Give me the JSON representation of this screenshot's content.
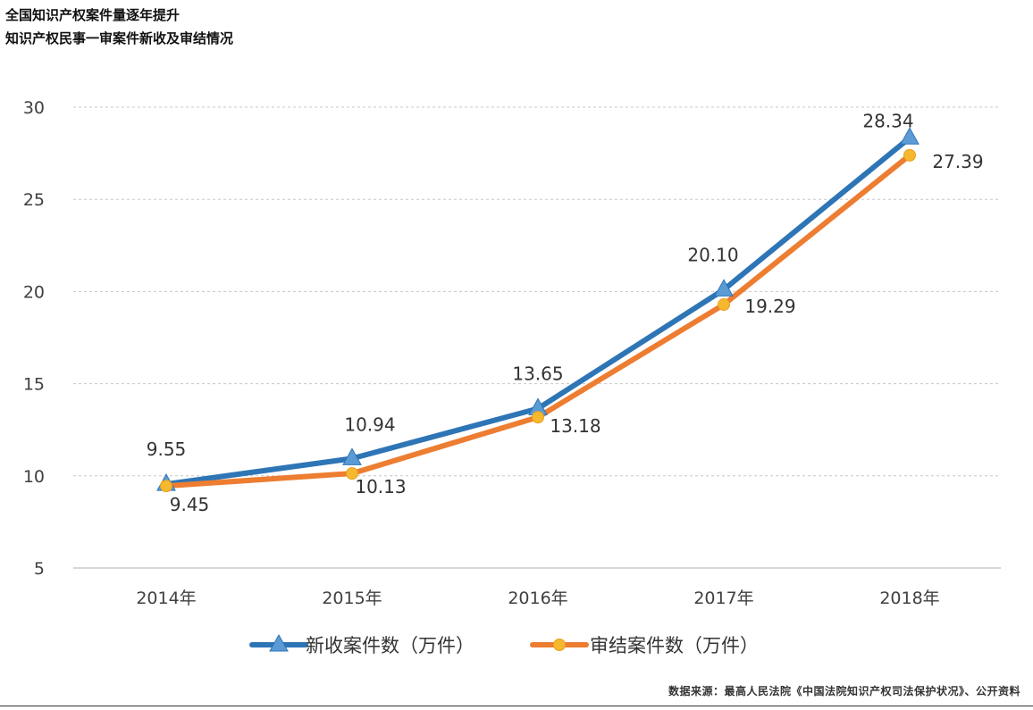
{
  "title": {
    "line1": "全国知识产权案件量逐年提升",
    "line2": "知识产权民事一审案件新收及审结情况"
  },
  "source": "数据来源：最高人民法院《中国法院知识产权司法保护状况》、公开资料",
  "chart_data": {
    "type": "line",
    "categories": [
      "2014年",
      "2015年",
      "2016年",
      "2017年",
      "2018年"
    ],
    "series": [
      {
        "name": "新收案件数（万件）",
        "values": [
          9.55,
          10.94,
          13.65,
          20.1,
          28.34
        ],
        "labels": [
          "9.55",
          "10.94",
          "13.65",
          "20.10",
          "28.34"
        ],
        "color": "#2E75B6",
        "marker_color": "#5B9BD5",
        "marker": "triangle"
      },
      {
        "name": "审结案件数（万件）",
        "values": [
          9.45,
          10.13,
          13.18,
          19.29,
          27.39
        ],
        "labels": [
          "9.45",
          "10.13",
          "13.18",
          "19.29",
          "27.39"
        ],
        "color": "#ED7D31",
        "marker_color": "#F5B82E",
        "marker": "circle"
      }
    ],
    "yticks": [
      "5",
      "10",
      "15",
      "20",
      "25",
      "30"
    ],
    "ylim": [
      5,
      30
    ],
    "grid": true,
    "legend": "bottom"
  }
}
